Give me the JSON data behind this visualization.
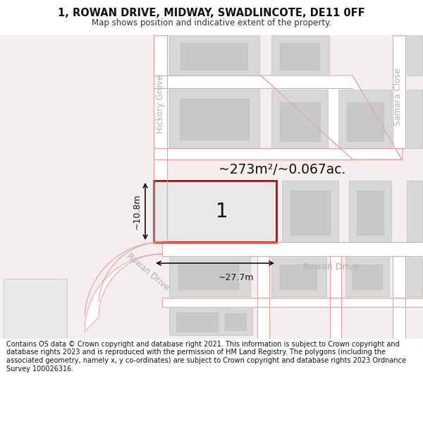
{
  "title_line1": "1, ROWAN DRIVE, MIDWAY, SWADLINCOTE, DE11 0FF",
  "title_line2": "Map shows position and indicative extent of the property.",
  "footer_text": "Contains OS data © Crown copyright and database right 2021. This information is subject to Crown copyright and database rights 2023 and is reproduced with the permission of HM Land Registry. The polygons (including the associated geometry, namely x, y co-ordinates) are subject to Crown copyright and database rights 2023 Ordnance Survey 100026316.",
  "bg_color": "#ffffff",
  "map_bg": "#f5eeee",
  "road_color": "#e8a0a0",
  "road_fill": "#ffffff",
  "building_fill": "#d8d8d8",
  "building_edge": "#c0c0c0",
  "highlight_color": "#cc0000",
  "street_label_color": "#b0b0b0",
  "area_text": "~273m²/~0.067ac.",
  "label_number": "1",
  "dim_width": "~27.7m",
  "dim_height": "~10.8m",
  "street_hickory": "Hickory Grove",
  "street_rowan_diag": "Rowan Drive",
  "street_rowan_horiz": "Rowan Drive",
  "street_samara": "Samara Close"
}
